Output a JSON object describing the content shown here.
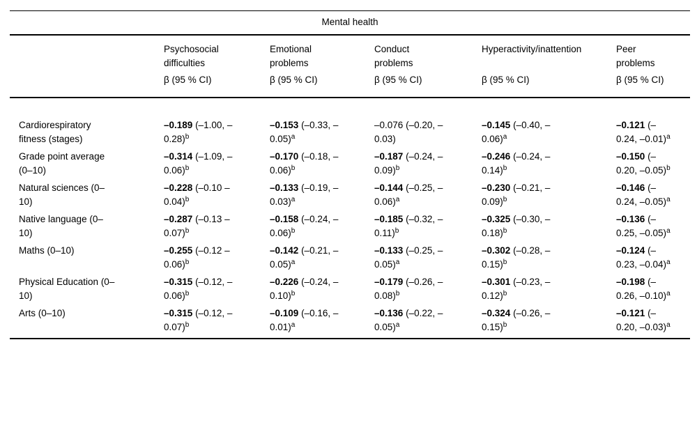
{
  "table": {
    "group_header": "Mental health",
    "beta_header": "β (95 % CI)",
    "columns": [
      "Psychosocial difficulties",
      "Emotional problems",
      "Conduct problems",
      "Hyperactivity/inattention",
      "Peer problems"
    ],
    "rows": [
      {
        "label": "Cardiorespiratory fitness (stages)",
        "cells": [
          {
            "value": "–0.189",
            "ci": "(–1.00, –0.28)",
            "sup": "b",
            "bold": true
          },
          {
            "value": "–0.153",
            "ci": "(–0.33, –0.05)",
            "sup": "a",
            "bold": true
          },
          {
            "value": "–0.076",
            "ci": "(–0.20, –0.03)",
            "sup": "",
            "bold": false
          },
          {
            "value": "–0.145",
            "ci": "(–0.40, –0.06)",
            "sup": "a",
            "bold": true
          },
          {
            "value": "–0.121",
            "ci": "(–0.24, –0.01)",
            "sup": "a",
            "bold": true
          }
        ]
      },
      {
        "label": "Grade point average (0–10)",
        "cells": [
          {
            "value": "–0.314",
            "ci": "(–1.09, –0.06)",
            "sup": "b",
            "bold": true
          },
          {
            "value": "–0.170",
            "ci": "(–0.18, –0.06)",
            "sup": "b",
            "bold": true
          },
          {
            "value": "–0.187",
            "ci": "(–0.24, –0.09)",
            "sup": "b",
            "bold": true
          },
          {
            "value": "–0.246",
            "ci": "(–0.24, –0.14)",
            "sup": "b",
            "bold": true
          },
          {
            "value": "–0.150",
            "ci": "(–0.20, –0.05)",
            "sup": "b",
            "bold": true
          }
        ]
      },
      {
        "label": "Natural sciences (0–10)",
        "cells": [
          {
            "value": "–0.228",
            "ci": "(–0.10 –0.04)",
            "sup": "b",
            "bold": true
          },
          {
            "value": "–0.133",
            "ci": "(–0.19, –0.03)",
            "sup": "a",
            "bold": true
          },
          {
            "value": "–0.144",
            "ci": "(–0.25, –0.06)",
            "sup": "a",
            "bold": true
          },
          {
            "value": "–0.230",
            "ci": "(–0.21, –0.09)",
            "sup": "b",
            "bold": true
          },
          {
            "value": "–0.146",
            "ci": "(–0.24, –0.05)",
            "sup": "a",
            "bold": true
          }
        ]
      },
      {
        "label": "Native language (0–10)",
        "cells": [
          {
            "value": "–0.287",
            "ci": "(–0.13 –0.07)",
            "sup": "b",
            "bold": true
          },
          {
            "value": "–0.158",
            "ci": "(–0.24, –0.06)",
            "sup": "b",
            "bold": true
          },
          {
            "value": "–0.185",
            "ci": "(–0.32, –0.11)",
            "sup": "b",
            "bold": true
          },
          {
            "value": "–0.325",
            "ci": "(–0.30, –0.18)",
            "sup": "b",
            "bold": true
          },
          {
            "value": "–0.136",
            "ci": "(–0.25, –0.05)",
            "sup": "a",
            "bold": true
          }
        ]
      },
      {
        "label": "Maths (0–10)",
        "cells": [
          {
            "value": "–0.255",
            "ci": "(–0.12 –0.06)",
            "sup": "b",
            "bold": true
          },
          {
            "value": "–0.142",
            "ci": "(–0.21, –0.05)",
            "sup": "a",
            "bold": true
          },
          {
            "value": "–0.133",
            "ci": "(–0.25, –0.05)",
            "sup": "a",
            "bold": true
          },
          {
            "value": "–0.302",
            "ci": "(–0.28, –0.15)",
            "sup": "b",
            "bold": true
          },
          {
            "value": "–0.124",
            "ci": "(–0.23, –0.04)",
            "sup": "a",
            "bold": true
          }
        ]
      },
      {
        "label": "Physical Education (0–10)",
        "cells": [
          {
            "value": "–0.315",
            "ci": "(–0.12, –0.06)",
            "sup": "b",
            "bold": true
          },
          {
            "value": "–0.226",
            "ci": "(–0.24, –0.10)",
            "sup": "b",
            "bold": true
          },
          {
            "value": "–0.179",
            "ci": "(–0.26, –0.08)",
            "sup": "b",
            "bold": true
          },
          {
            "value": "–0.301",
            "ci": "(–0.23, –0.12)",
            "sup": "b",
            "bold": true
          },
          {
            "value": "–0.198",
            "ci": "(–0.26, –0.10)",
            "sup": "a",
            "bold": true
          }
        ]
      },
      {
        "label": "Arts (0–10)",
        "cells": [
          {
            "value": "–0.315",
            "ci": "(–0.12, –0.07)",
            "sup": "b",
            "bold": true
          },
          {
            "value": "–0.109",
            "ci": "(–0.16, –0.01)",
            "sup": "a",
            "bold": true
          },
          {
            "value": "–0.136",
            "ci": "(–0.22, –0.05)",
            "sup": "a",
            "bold": true
          },
          {
            "value": "–0.324",
            "ci": "(–0.26, –0.15)",
            "sup": "b",
            "bold": true
          },
          {
            "value": "–0.121",
            "ci": "(–0.20, –0.03)",
            "sup": "a",
            "bold": true
          }
        ]
      }
    ]
  }
}
